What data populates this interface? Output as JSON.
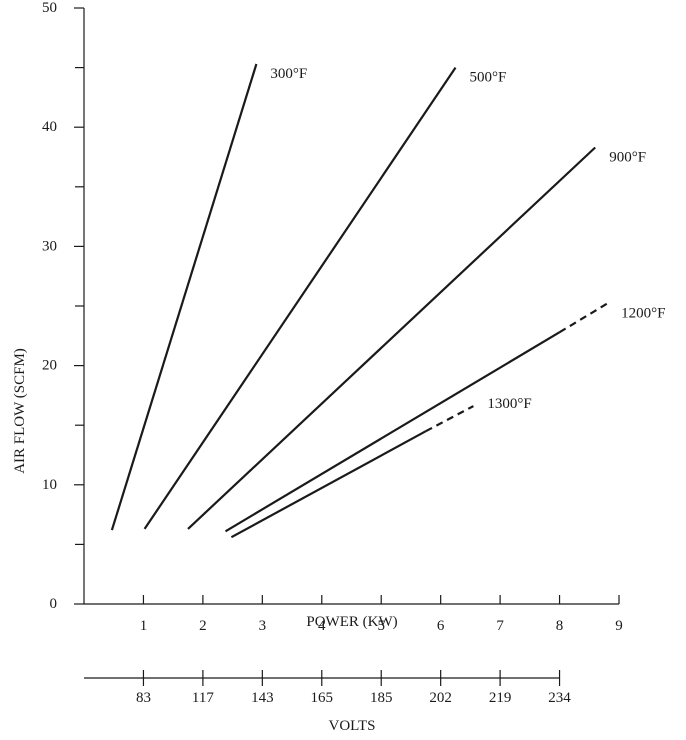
{
  "chart_data": {
    "type": "line",
    "title": "",
    "xlabel": "POWER (KW)",
    "ylabel": "AIR FLOW (SCFM)",
    "xlim": [
      0,
      9
    ],
    "ylim": [
      0,
      50
    ],
    "x_ticks": [
      1,
      2,
      3,
      4,
      5,
      6,
      7,
      8,
      9
    ],
    "y_ticks": [
      0,
      10,
      20,
      30,
      40,
      50
    ],
    "grid": false,
    "secondary_axis": {
      "label": "VOLTS",
      "ticks": [
        {
          "power": 1,
          "label": "83"
        },
        {
          "power": 2,
          "label": "117"
        },
        {
          "power": 3,
          "label": "143"
        },
        {
          "power": 4,
          "label": "165"
        },
        {
          "power": 5,
          "label": "185"
        },
        {
          "power": 6,
          "label": "202"
        },
        {
          "power": 7,
          "label": "219"
        },
        {
          "power": 8,
          "label": "234"
        }
      ]
    },
    "series": [
      {
        "name": "300°F",
        "points": [
          [
            0.47,
            6.2
          ],
          [
            2.9,
            45.3
          ]
        ],
        "dashed_from": null
      },
      {
        "name": "500°F",
        "points": [
          [
            1.02,
            6.3
          ],
          [
            6.25,
            45.0
          ]
        ],
        "dashed_from": null
      },
      {
        "name": "900°F",
        "points": [
          [
            1.75,
            6.3
          ],
          [
            8.6,
            38.3
          ]
        ],
        "dashed_from": null
      },
      {
        "name": "1200°F",
        "points": [
          [
            2.38,
            6.1
          ],
          [
            8.0,
            22.8
          ],
          [
            8.8,
            25.2
          ]
        ],
        "dashed_from": 8.0
      },
      {
        "name": "1300°F",
        "points": [
          [
            2.48,
            5.6
          ],
          [
            5.75,
            14.5
          ],
          [
            6.55,
            16.6
          ]
        ],
        "dashed_from": 5.75
      }
    ]
  }
}
